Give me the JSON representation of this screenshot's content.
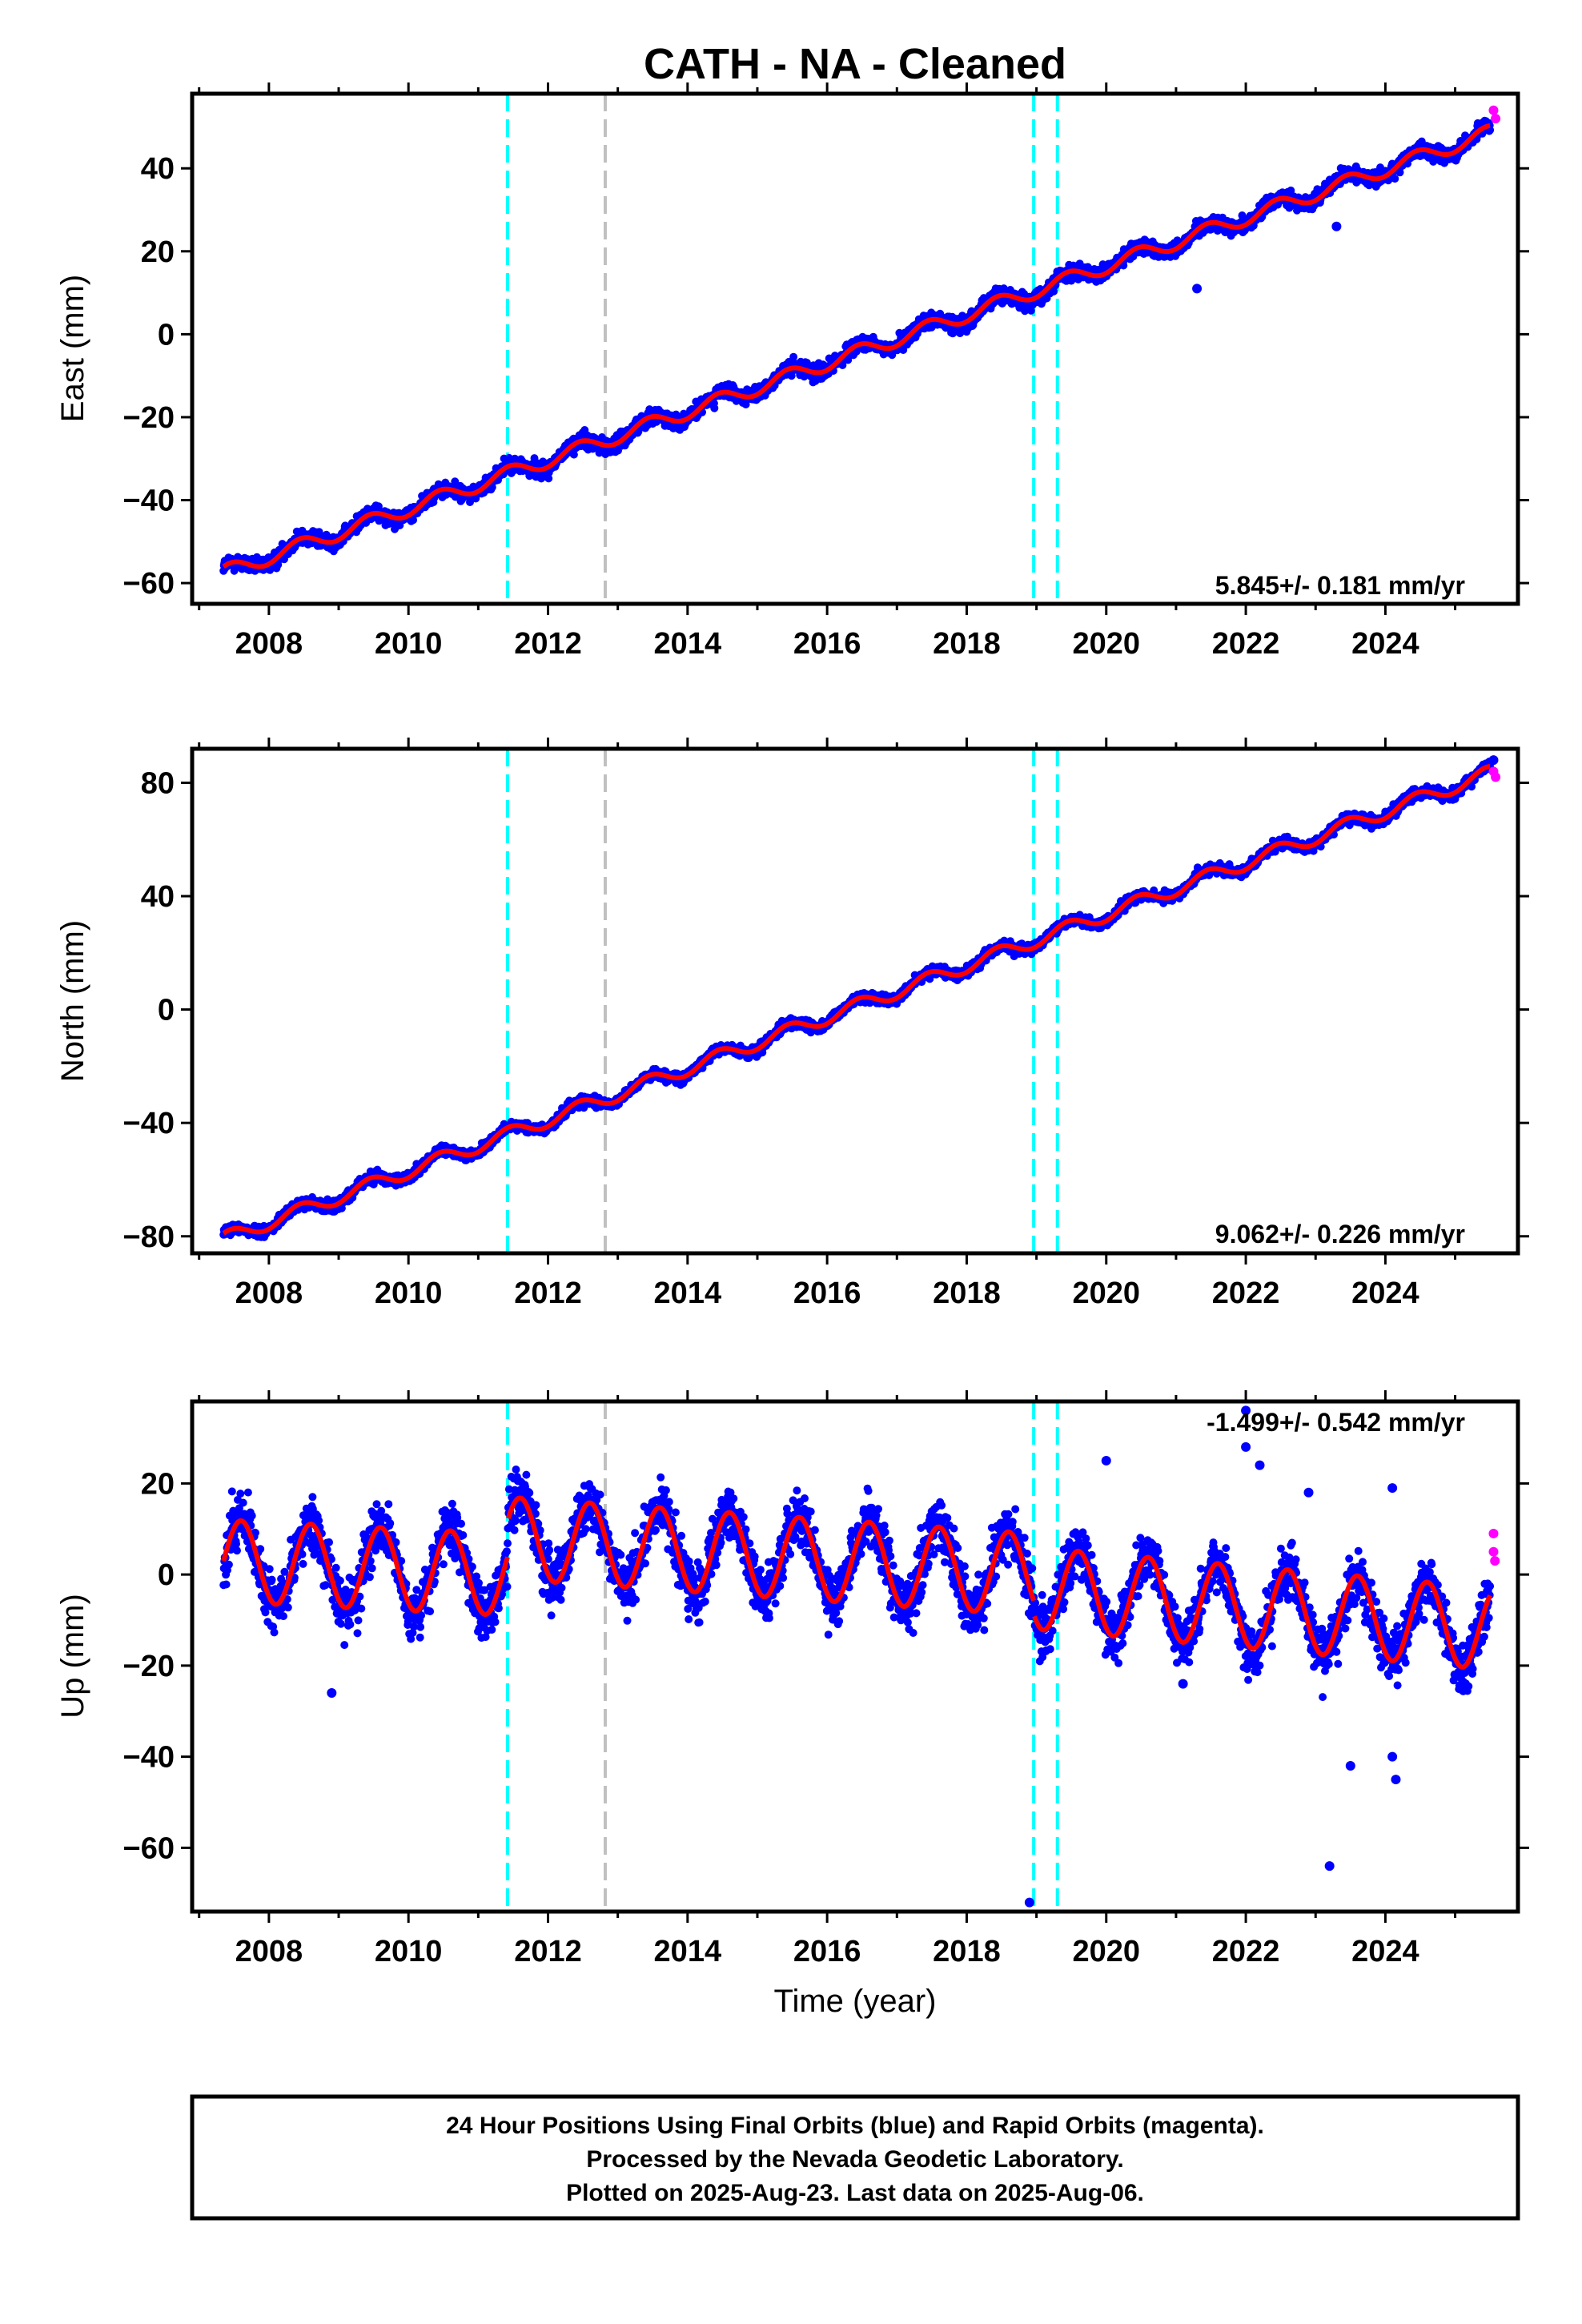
{
  "title": "CATH  - NA - Cleaned",
  "colors": {
    "final_orbits": "#0000ff",
    "rapid_orbits": "#ff00ff",
    "model": "#ff0000",
    "equipment_change": "#00ffff",
    "earthquake": "#c0c0c0"
  },
  "chart_data": [
    {
      "type": "scatter",
      "name": "east",
      "ylabel": "East (mm)",
      "xlim": [
        2006.9,
        2025.9
      ],
      "ylim": [
        -65,
        58
      ],
      "x_ticks": [
        "2008",
        "2010",
        "2012",
        "2014",
        "2016",
        "2018",
        "2020",
        "2022",
        "2024"
      ],
      "y_ticks": [
        "40",
        "20",
        "0",
        "−20",
        "−40",
        "−60"
      ],
      "y_tick_values": [
        40,
        20,
        0,
        -20,
        -40,
        -60
      ],
      "rate_text": "5.845+/- 0.181 mm/yr",
      "rate_position": "bottom-right",
      "trend": {
        "start_year": 2007.35,
        "start_value": -57.5,
        "rate_mm_per_yr": 5.845,
        "seasonal_amplitude": 1.8
      },
      "equipment_changes": [
        2011.42,
        2018.96,
        2019.3
      ],
      "earthquakes": [
        2012.82
      ],
      "outliers": [
        {
          "x": 2021.3,
          "y": 11
        },
        {
          "x": 2023.3,
          "y": 26
        }
      ],
      "rapid_points": [
        {
          "x": 2025.55,
          "y": 54
        },
        {
          "x": 2025.58,
          "y": 52
        }
      ]
    },
    {
      "type": "scatter",
      "name": "north",
      "ylabel": "North (mm)",
      "xlim": [
        2006.9,
        2025.9
      ],
      "ylim": [
        -86,
        92
      ],
      "x_ticks": [
        "2008",
        "2010",
        "2012",
        "2014",
        "2016",
        "2018",
        "2020",
        "2022",
        "2024"
      ],
      "y_ticks": [
        "80",
        "40",
        "0",
        "−40",
        "−80"
      ],
      "y_tick_values": [
        80,
        40,
        0,
        -40,
        -80
      ],
      "rate_text": "9.062+/- 0.226 mm/yr",
      "rate_position": "bottom-right",
      "trend": {
        "start_year": 2007.35,
        "start_value": -81,
        "rate_mm_per_yr": 9.062,
        "seasonal_amplitude": 2.5
      },
      "equipment_changes": [
        2011.42,
        2018.96,
        2019.3
      ],
      "earthquakes": [
        2012.82
      ],
      "outliers": [
        {
          "x": 2025.55,
          "y": 88
        }
      ],
      "rapid_points": [
        {
          "x": 2025.55,
          "y": 84
        },
        {
          "x": 2025.58,
          "y": 82
        }
      ]
    },
    {
      "type": "scatter",
      "name": "up",
      "ylabel": "Up (mm)",
      "xlabel": "Time (year)",
      "xlim": [
        2006.9,
        2025.9
      ],
      "ylim": [
        -74,
        38
      ],
      "x_ticks": [
        "2008",
        "2010",
        "2012",
        "2014",
        "2016",
        "2018",
        "2020",
        "2022",
        "2024"
      ],
      "y_ticks": [
        "20",
        "0",
        "−20",
        "−40",
        "−60"
      ],
      "y_tick_values": [
        20,
        0,
        -20,
        -40,
        -60
      ],
      "rate_text": "-1.499+/- 0.542 mm/yr",
      "rate_position": "top-right",
      "seasonal_amplitude": 9,
      "segments": [
        {
          "from": 2007.35,
          "to": 2011.42,
          "start_value": 3,
          "end_value": 0
        },
        {
          "from": 2011.42,
          "to": 2018.96,
          "start_value": 8,
          "end_value": 0
        },
        {
          "from": 2018.96,
          "to": 2025.6,
          "start_value": -3,
          "end_value": -12
        }
      ],
      "equipment_changes": [
        2011.42,
        2018.96,
        2019.3
      ],
      "earthquakes": [
        2012.82
      ],
      "outliers": [
        {
          "x": 2008.9,
          "y": -26
        },
        {
          "x": 2018.9,
          "y": -72
        },
        {
          "x": 2020.0,
          "y": 25
        },
        {
          "x": 2021.1,
          "y": -24
        },
        {
          "x": 2022.0,
          "y": 36
        },
        {
          "x": 2022.0,
          "y": 28
        },
        {
          "x": 2022.2,
          "y": 24
        },
        {
          "x": 2022.9,
          "y": 18
        },
        {
          "x": 2023.2,
          "y": -64
        },
        {
          "x": 2024.1,
          "y": 19
        },
        {
          "x": 2024.1,
          "y": -40
        },
        {
          "x": 2024.15,
          "y": -45
        },
        {
          "x": 2023.5,
          "y": -42
        }
      ],
      "rapid_points": [
        {
          "x": 2025.55,
          "y": 9
        },
        {
          "x": 2025.55,
          "y": 5
        },
        {
          "x": 2025.57,
          "y": 3
        }
      ]
    }
  ],
  "footer": {
    "line1": "24 Hour Positions Using Final Orbits (blue) and Rapid Orbits (magenta).",
    "line2": "Processed by the Nevada Geodetic Laboratory.",
    "line3": "Plotted on 2025-Aug-23. Last data on 2025-Aug-06."
  }
}
